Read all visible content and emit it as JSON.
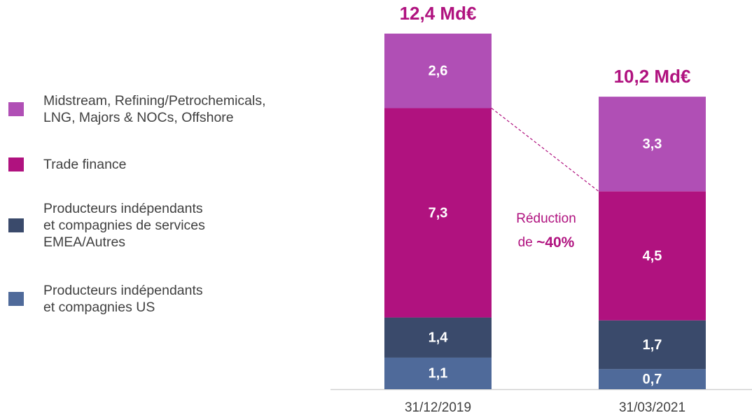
{
  "chart_data": {
    "type": "stacked_bar",
    "categories": [
      "31/12/2019",
      "31/03/2021"
    ],
    "series": [
      {
        "name": "Producteurs indépendants et compagnies US",
        "color": "#4f6a9a",
        "values": [
          1.1,
          0.7
        ],
        "value_labels": [
          "1,1",
          "0,7"
        ]
      },
      {
        "name": "Producteurs indépendants et compagnies de services EMEA/Autres",
        "color": "#3a4a6b",
        "values": [
          1.4,
          1.7
        ],
        "value_labels": [
          "1,4",
          "1,7"
        ]
      },
      {
        "name": "Trade finance",
        "color": "#b0127f",
        "values": [
          7.3,
          4.5
        ],
        "value_labels": [
          "7,3",
          "4,5"
        ]
      },
      {
        "name": "Midstream, Refining/Petrochemicals, LNG, Majors & NOCs, Offshore",
        "color": "#b04fb5",
        "values": [
          2.6,
          3.3
        ],
        "value_labels": [
          "2,6",
          "3,3"
        ]
      }
    ],
    "totals": [
      12.4,
      10.2
    ],
    "total_labels": [
      "12,4 Md€",
      "10,2 Md€"
    ],
    "annotation": [
      "Réduction",
      "de",
      "~40%"
    ],
    "accent_color": "#b0127f"
  }
}
